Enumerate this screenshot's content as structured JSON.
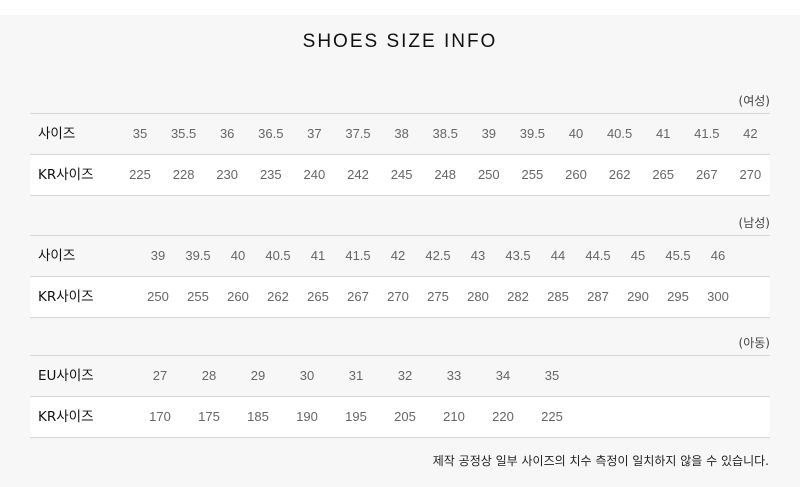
{
  "title": "SHOES SIZE INFO",
  "sections": [
    {
      "label": "(여성)",
      "rows": [
        {
          "label": "사이즈",
          "values": [
            "35",
            "35.5",
            "36",
            "36.5",
            "37",
            "37.5",
            "38",
            "38.5",
            "39",
            "39.5",
            "40",
            "40.5",
            "41",
            "41.5",
            "42"
          ]
        },
        {
          "label": "KR사이즈",
          "values": [
            "225",
            "228",
            "230",
            "235",
            "240",
            "242",
            "245",
            "248",
            "250",
            "255",
            "260",
            "262",
            "265",
            "267",
            "270"
          ]
        }
      ]
    },
    {
      "label": "(남성)",
      "rows": [
        {
          "label": "사이즈",
          "values": [
            "39",
            "39.5",
            "40",
            "40.5",
            "41",
            "41.5",
            "42",
            "42.5",
            "43",
            "43.5",
            "44",
            "44.5",
            "45",
            "45.5",
            "46"
          ]
        },
        {
          "label": "KR사이즈",
          "values": [
            "250",
            "255",
            "260",
            "262",
            "265",
            "267",
            "270",
            "275",
            "280",
            "282",
            "285",
            "287",
            "290",
            "295",
            "300"
          ]
        }
      ]
    },
    {
      "label": "(아동)",
      "rows": [
        {
          "label": "EU사이즈",
          "values": [
            "27",
            "28",
            "29",
            "30",
            "31",
            "32",
            "33",
            "34",
            "35"
          ]
        },
        {
          "label": "KR사이즈",
          "values": [
            "170",
            "175",
            "185",
            "190",
            "195",
            "205",
            "210",
            "220",
            "225"
          ]
        }
      ]
    }
  ],
  "note": "제작 공정상 일부 사이즈의 치수 측정이 일치하지 않을 수 있습니다."
}
